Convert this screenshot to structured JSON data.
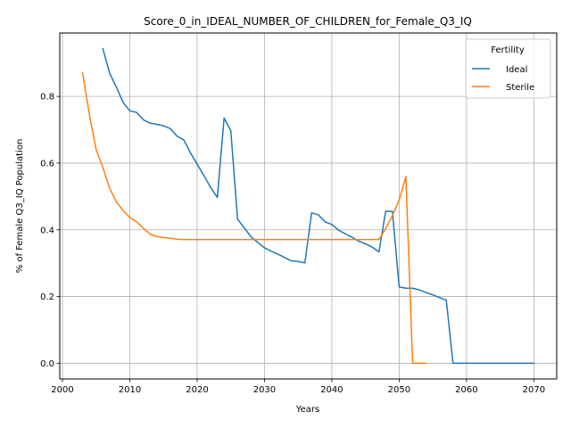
{
  "chart_data": {
    "type": "line",
    "title": "Score_0_in_IDEAL_NUMBER_OF_CHILDREN_for_Female_Q3_IQ",
    "xlabel": "Years",
    "ylabel": "% of Female Q3_IQ Population",
    "xlim": [
      1999.6,
      2073.4
    ],
    "ylim": [
      -0.047,
      0.99
    ],
    "xticks": [
      2000,
      2010,
      2020,
      2030,
      2040,
      2050,
      2060,
      2070
    ],
    "yticks": [
      0.0,
      0.2,
      0.4,
      0.6,
      0.8
    ],
    "ytick_labels": [
      "0.0",
      "0.2",
      "0.4",
      "0.6",
      "0.8"
    ],
    "grid": true,
    "legend": {
      "title": "Fertility",
      "placement": "top-right"
    },
    "series": [
      {
        "name": "Ideal",
        "color": "#1f77b4",
        "points": [
          [
            2006,
            0.943
          ],
          [
            2007,
            0.87
          ],
          [
            2008,
            0.828
          ],
          [
            2009,
            0.782
          ],
          [
            2010,
            0.757
          ],
          [
            2011,
            0.752
          ],
          [
            2012,
            0.73
          ],
          [
            2013,
            0.72
          ],
          [
            2014,
            0.716
          ],
          [
            2015,
            0.712
          ],
          [
            2016,
            0.704
          ],
          [
            2017,
            0.681
          ],
          [
            2018,
            0.67
          ],
          [
            2019,
            0.631
          ],
          [
            2020,
            0.597
          ],
          [
            2021,
            0.563
          ],
          [
            2022,
            0.527
          ],
          [
            2023,
            0.497
          ],
          [
            2024,
            0.735
          ],
          [
            2025,
            0.697
          ],
          [
            2026,
            0.432
          ],
          [
            2027,
            0.406
          ],
          [
            2028,
            0.379
          ],
          [
            2029,
            0.362
          ],
          [
            2030,
            0.346
          ],
          [
            2031,
            0.336
          ],
          [
            2032,
            0.327
          ],
          [
            2033,
            0.317
          ],
          [
            2034,
            0.307
          ],
          [
            2035,
            0.305
          ],
          [
            2036,
            0.301
          ],
          [
            2037,
            0.451
          ],
          [
            2038,
            0.445
          ],
          [
            2039,
            0.424
          ],
          [
            2040,
            0.416
          ],
          [
            2041,
            0.399
          ],
          [
            2042,
            0.388
          ],
          [
            2043,
            0.378
          ],
          [
            2044,
            0.366
          ],
          [
            2045,
            0.358
          ],
          [
            2046,
            0.348
          ],
          [
            2047,
            0.334
          ],
          [
            2048,
            0.456
          ],
          [
            2049,
            0.455
          ],
          [
            2050,
            0.229
          ],
          [
            2051,
            0.225
          ],
          [
            2052,
            0.225
          ],
          [
            2053,
            0.22
          ],
          [
            2054,
            0.212
          ],
          [
            2055,
            0.205
          ],
          [
            2056,
            0.197
          ],
          [
            2057,
            0.189
          ],
          [
            2058,
            0.0
          ],
          [
            2059,
            0.0
          ],
          [
            2060,
            0.0
          ],
          [
            2061,
            0.0
          ],
          [
            2062,
            0.0
          ],
          [
            2063,
            0.0
          ],
          [
            2064,
            0.0
          ],
          [
            2065,
            0.0
          ],
          [
            2066,
            0.0
          ],
          [
            2067,
            0.0
          ],
          [
            2068,
            0.0
          ],
          [
            2069,
            0.0
          ],
          [
            2070,
            0.0
          ]
        ]
      },
      {
        "name": "Sterile",
        "color": "#ff7f0e",
        "points": [
          [
            2003,
            0.87
          ],
          [
            2004,
            0.745
          ],
          [
            2005,
            0.641
          ],
          [
            2006,
            0.587
          ],
          [
            2007,
            0.525
          ],
          [
            2008,
            0.484
          ],
          [
            2009,
            0.458
          ],
          [
            2010,
            0.437
          ],
          [
            2011,
            0.424
          ],
          [
            2012,
            0.405
          ],
          [
            2013,
            0.387
          ],
          [
            2014,
            0.38
          ],
          [
            2015,
            0.377
          ],
          [
            2016,
            0.375
          ],
          [
            2017,
            0.372
          ],
          [
            2018,
            0.371
          ],
          [
            2019,
            0.371
          ],
          [
            2020,
            0.371
          ],
          [
            2021,
            0.371
          ],
          [
            2022,
            0.371
          ],
          [
            2023,
            0.371
          ],
          [
            2024,
            0.371
          ],
          [
            2025,
            0.371
          ],
          [
            2026,
            0.371
          ],
          [
            2027,
            0.371
          ],
          [
            2028,
            0.371
          ],
          [
            2029,
            0.371
          ],
          [
            2030,
            0.371
          ],
          [
            2031,
            0.371
          ],
          [
            2032,
            0.371
          ],
          [
            2033,
            0.371
          ],
          [
            2034,
            0.371
          ],
          [
            2035,
            0.371
          ],
          [
            2036,
            0.371
          ],
          [
            2037,
            0.371
          ],
          [
            2038,
            0.371
          ],
          [
            2039,
            0.371
          ],
          [
            2040,
            0.371
          ],
          [
            2041,
            0.371
          ],
          [
            2042,
            0.371
          ],
          [
            2043,
            0.371
          ],
          [
            2044,
            0.371
          ],
          [
            2045,
            0.371
          ],
          [
            2046,
            0.371
          ],
          [
            2047,
            0.371
          ],
          [
            2048,
            0.404
          ],
          [
            2049,
            0.443
          ],
          [
            2050,
            0.489
          ],
          [
            2051,
            0.559
          ],
          [
            2052,
            0.0
          ],
          [
            2053,
            0.0
          ],
          [
            2054,
            0.0
          ]
        ]
      }
    ]
  }
}
